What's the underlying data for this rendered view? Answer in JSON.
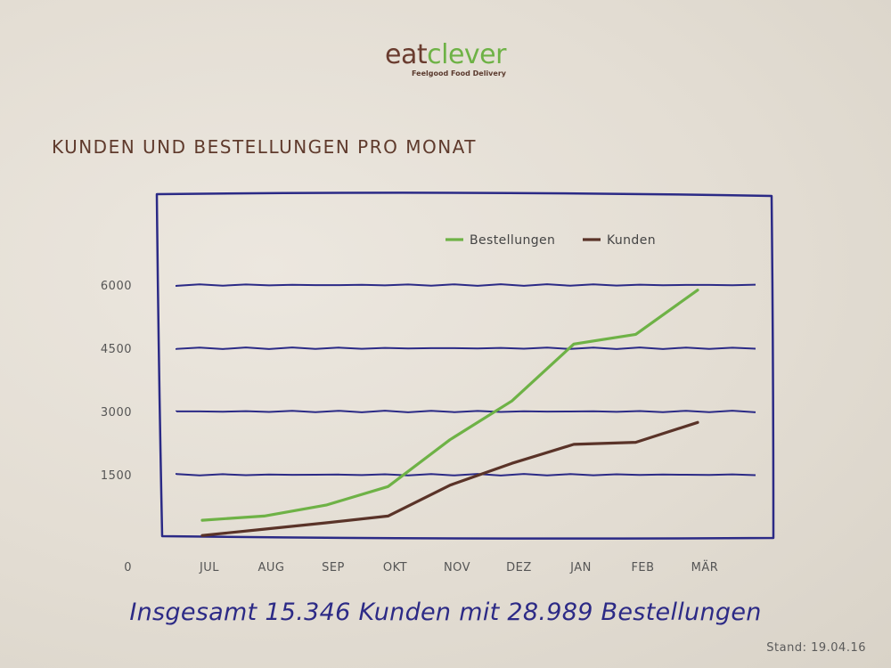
{
  "brand": {
    "name_part1": "eat",
    "name_part2": "clever",
    "tagline": "Feelgood Food Delivery"
  },
  "summary": "Insgesamt 15.346 Kunden mit 28.989 Bestellungen",
  "stand": "Stand: 19.04.16",
  "colors": {
    "bestellungen": "#6eb246",
    "kunden": "#5a3328",
    "frame": "#2b2a86",
    "grid": "#2b2a86"
  },
  "chart_data": {
    "type": "line",
    "title": "KUNDEN UND BESTELLUNGEN PRO MONAT",
    "categories": [
      "JUL",
      "AUG",
      "SEP",
      "OKT",
      "NOV",
      "DEZ",
      "JAN",
      "FEB",
      "MÄR"
    ],
    "y_ticks": [
      "0",
      "1500",
      "3000",
      "4500",
      "6000"
    ],
    "ylim": [
      0,
      6000
    ],
    "grid": true,
    "legend_position": "top-right",
    "series": [
      {
        "name": "Bestellungen",
        "values": [
          420,
          520,
          780,
          1220,
          2330,
          3250,
          4600,
          4830,
          5880
        ]
      },
      {
        "name": "Kunden",
        "values": [
          60,
          210,
          360,
          520,
          1250,
          1770,
          2220,
          2270,
          2740
        ]
      }
    ]
  }
}
